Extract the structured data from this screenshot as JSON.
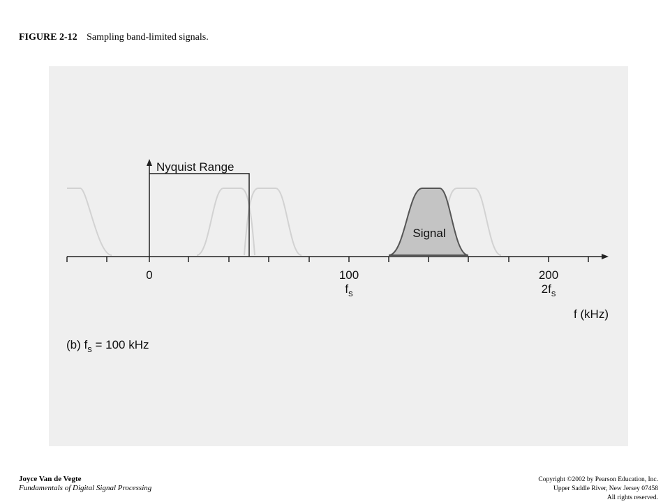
{
  "header": {
    "figure": "FIGURE 2-12",
    "caption": "Sampling band-limited signals."
  },
  "diagram": {
    "nyquist_label": "Nyquist Range",
    "signal_label": "Signal",
    "ticks": [
      {
        "value": "0"
      },
      {
        "value": "100",
        "sub_main": "f",
        "sub": "s"
      },
      {
        "value": "200",
        "sub_main": "2f",
        "sub": "s"
      }
    ],
    "axis_label": "f (kHz)",
    "panel": {
      "prefix": "(b) f",
      "sub": "s",
      "rest": " = 100 kHz"
    }
  },
  "footer": {
    "author": "Joyce Van de Vegte",
    "book": "Fundamentals of Digital Signal Processing",
    "copyright": "Copyright ©2002 by Pearson Education, Inc.",
    "address": "Upper Saddle River, New Jersey 07458",
    "rights": "All rights reserved."
  }
}
